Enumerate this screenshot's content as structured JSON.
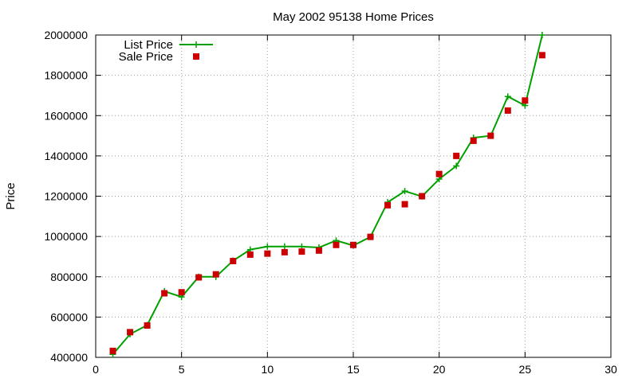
{
  "chart_data": {
    "type": "line",
    "title": "May 2002 95138 Home Prices",
    "xlabel": "",
    "ylabel": "Price",
    "xlim": [
      0,
      30
    ],
    "ylim": [
      400000,
      2000000
    ],
    "xticks": [
      0,
      5,
      10,
      15,
      20,
      25,
      30
    ],
    "yticks": [
      400000,
      600000,
      800000,
      1000000,
      1200000,
      1400000,
      1600000,
      1800000,
      2000000
    ],
    "grid": true,
    "legend_position": "top-left",
    "series": [
      {
        "name": "List Price",
        "style": "line+cross",
        "color": "#00a000",
        "x": [
          1,
          2,
          3,
          4,
          5,
          6,
          7,
          8,
          9,
          10,
          11,
          12,
          13,
          14,
          15,
          16,
          17,
          18,
          19,
          20,
          21,
          22,
          23,
          24,
          25,
          26
        ],
        "y": [
          415000,
          515000,
          560000,
          728000,
          700000,
          800000,
          800000,
          880000,
          935000,
          950000,
          950000,
          950000,
          945000,
          980000,
          955000,
          998000,
          1170000,
          1225000,
          1199000,
          1285000,
          1350000,
          1490000,
          1500000,
          1695000,
          1650000,
          2000000
        ]
      },
      {
        "name": "Sale Price",
        "style": "square",
        "color": "#cc0000",
        "x": [
          1,
          2,
          3,
          4,
          5,
          6,
          7,
          8,
          9,
          10,
          11,
          12,
          13,
          14,
          15,
          16,
          17,
          18,
          19,
          20,
          21,
          22,
          23,
          24,
          25,
          26
        ],
        "y": [
          432000,
          525000,
          558000,
          718000,
          723000,
          797000,
          812000,
          878000,
          910000,
          915000,
          922000,
          925000,
          930000,
          958000,
          958000,
          998000,
          1155000,
          1160000,
          1200000,
          1310000,
          1400000,
          1475000,
          1500000,
          1625000,
          1675000,
          1900000
        ]
      }
    ]
  }
}
